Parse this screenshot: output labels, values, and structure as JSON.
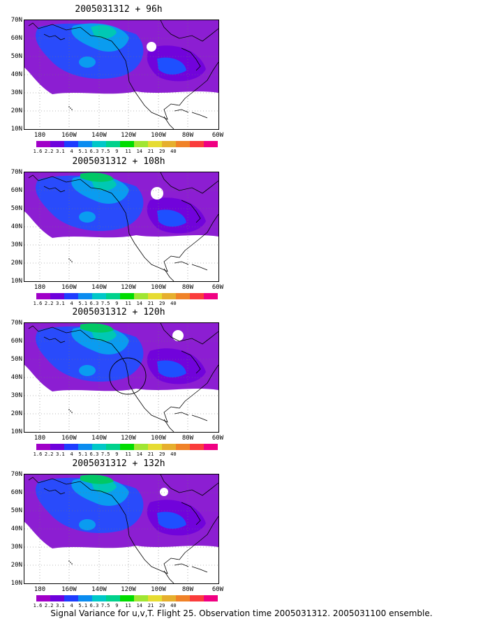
{
  "panels": [
    {
      "title": "2005031312 + 96h"
    },
    {
      "title": "2005031312 + 108h"
    },
    {
      "title": "2005031312 + 120h"
    },
    {
      "title": "2005031312 + 132h"
    }
  ],
  "lat_labels": [
    "70N",
    "60N",
    "50N",
    "40N",
    "30N",
    "20N",
    "10N"
  ],
  "lon_labels": [
    "180",
    "160W",
    "140W",
    "120W",
    "100W",
    "80W",
    "60W"
  ],
  "colorbar": {
    "labels": [
      "1.6",
      "2.2",
      "3.1",
      "4",
      "5.1",
      "6.3",
      "7.5",
      "9",
      "11",
      "14",
      "21",
      "29",
      "40"
    ],
    "colors": [
      "#a000c8",
      "#6e00dc",
      "#1e3cff",
      "#0a8cf0",
      "#00c8c8",
      "#00d28c",
      "#00dc00",
      "#a0e632",
      "#e6dc32",
      "#e6af2d",
      "#f08228",
      "#fa3c3c",
      "#f00082"
    ]
  },
  "caption": "Signal Variance for u,v,T. Flight 25. Observation time 2005031312. 2005031100 ensemble."
}
